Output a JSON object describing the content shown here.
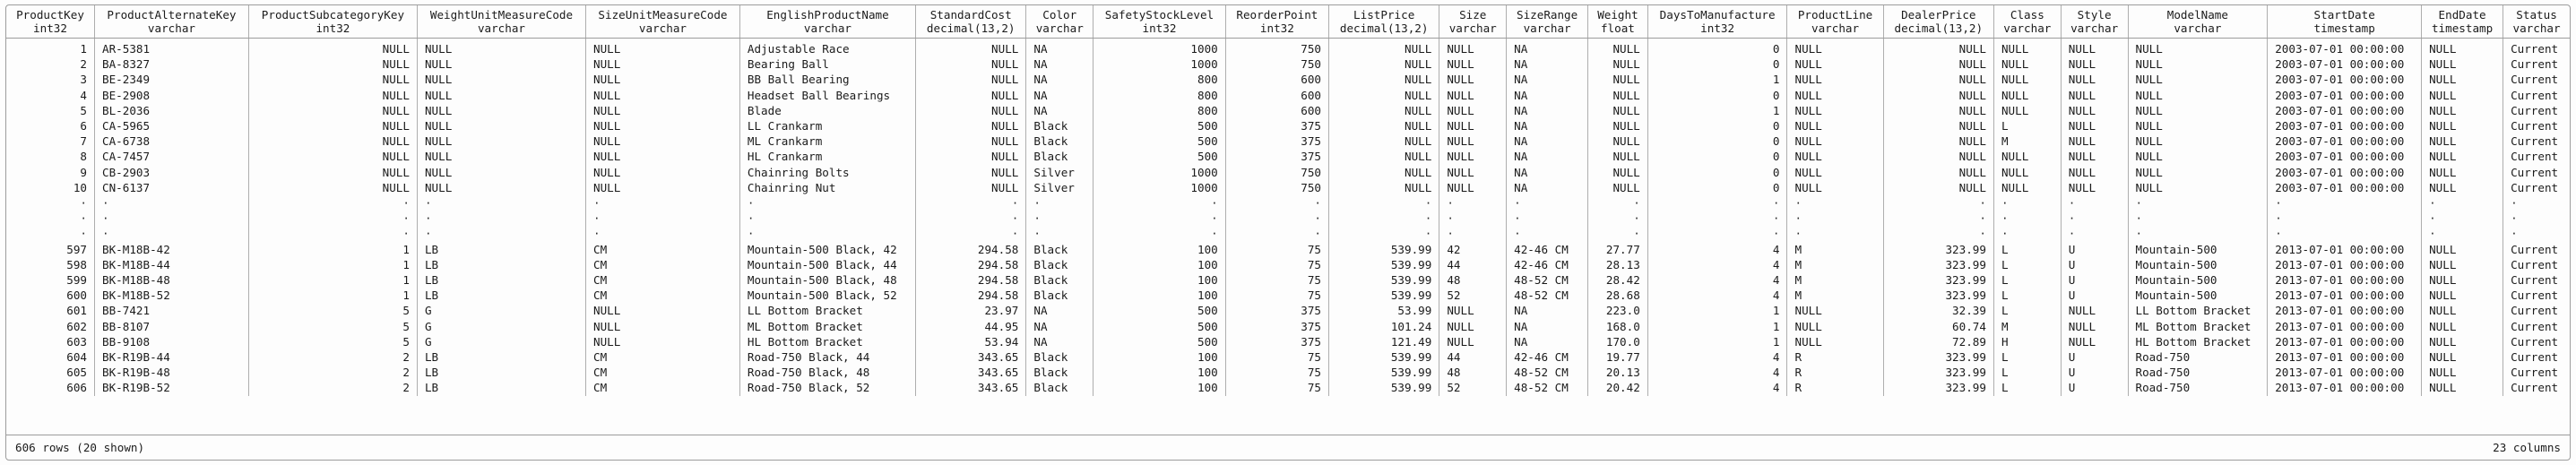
{
  "colors": {
    "background": "#fdfdfd",
    "border": "#9c9c9c",
    "text": "#1b1b1b"
  },
  "table": {
    "ellipsis_symbol": "·",
    "ellipsis_row_count": 3,
    "columns": [
      {
        "name": "ProductKey",
        "type": "int32",
        "align": "right"
      },
      {
        "name": "ProductAlternateKey",
        "type": "varchar",
        "align": "left"
      },
      {
        "name": "ProductSubcategoryKey",
        "type": "int32",
        "align": "right"
      },
      {
        "name": "WeightUnitMeasureCode",
        "type": "varchar",
        "align": "left"
      },
      {
        "name": "SizeUnitMeasureCode",
        "type": "varchar",
        "align": "left"
      },
      {
        "name": "EnglishProductName",
        "type": "varchar",
        "align": "left"
      },
      {
        "name": "StandardCost",
        "type": "decimal(13,2)",
        "align": "right"
      },
      {
        "name": "Color",
        "type": "varchar",
        "align": "left"
      },
      {
        "name": "SafetyStockLevel",
        "type": "int32",
        "align": "right"
      },
      {
        "name": "ReorderPoint",
        "type": "int32",
        "align": "right"
      },
      {
        "name": "ListPrice",
        "type": "decimal(13,2)",
        "align": "right"
      },
      {
        "name": "Size",
        "type": "varchar",
        "align": "left"
      },
      {
        "name": "SizeRange",
        "type": "varchar",
        "align": "left"
      },
      {
        "name": "Weight",
        "type": "float",
        "align": "right"
      },
      {
        "name": "DaysToManufacture",
        "type": "int32",
        "align": "right"
      },
      {
        "name": "ProductLine",
        "type": "varchar",
        "align": "left"
      },
      {
        "name": "DealerPrice",
        "type": "decimal(13,2)",
        "align": "right"
      },
      {
        "name": "Class",
        "type": "varchar",
        "align": "left"
      },
      {
        "name": "Style",
        "type": "varchar",
        "align": "left"
      },
      {
        "name": "ModelName",
        "type": "varchar",
        "align": "left"
      },
      {
        "name": "StartDate",
        "type": "timestamp",
        "align": "left"
      },
      {
        "name": "EndDate",
        "type": "timestamp",
        "align": "left"
      },
      {
        "name": "Status",
        "type": "varchar",
        "align": "left"
      }
    ],
    "rows_top": [
      [
        "1",
        "AR-5381",
        "NULL",
        "NULL",
        "NULL",
        "Adjustable Race",
        "NULL",
        "NA",
        "1000",
        "750",
        "NULL",
        "NULL",
        "NA",
        "NULL",
        "0",
        "NULL",
        "NULL",
        "NULL",
        "NULL",
        "NULL",
        "2003-07-01 00:00:00",
        "NULL",
        "Current"
      ],
      [
        "2",
        "BA-8327",
        "NULL",
        "NULL",
        "NULL",
        "Bearing Ball",
        "NULL",
        "NA",
        "1000",
        "750",
        "NULL",
        "NULL",
        "NA",
        "NULL",
        "0",
        "NULL",
        "NULL",
        "NULL",
        "NULL",
        "NULL",
        "2003-07-01 00:00:00",
        "NULL",
        "Current"
      ],
      [
        "3",
        "BE-2349",
        "NULL",
        "NULL",
        "NULL",
        "BB Ball Bearing",
        "NULL",
        "NA",
        "800",
        "600",
        "NULL",
        "NULL",
        "NA",
        "NULL",
        "1",
        "NULL",
        "NULL",
        "NULL",
        "NULL",
        "NULL",
        "2003-07-01 00:00:00",
        "NULL",
        "Current"
      ],
      [
        "4",
        "BE-2908",
        "NULL",
        "NULL",
        "NULL",
        "Headset Ball Bearings",
        "NULL",
        "NA",
        "800",
        "600",
        "NULL",
        "NULL",
        "NA",
        "NULL",
        "0",
        "NULL",
        "NULL",
        "NULL",
        "NULL",
        "NULL",
        "2003-07-01 00:00:00",
        "NULL",
        "Current"
      ],
      [
        "5",
        "BL-2036",
        "NULL",
        "NULL",
        "NULL",
        "Blade",
        "NULL",
        "NA",
        "800",
        "600",
        "NULL",
        "NULL",
        "NA",
        "NULL",
        "1",
        "NULL",
        "NULL",
        "NULL",
        "NULL",
        "NULL",
        "2003-07-01 00:00:00",
        "NULL",
        "Current"
      ],
      [
        "6",
        "CA-5965",
        "NULL",
        "NULL",
        "NULL",
        "LL Crankarm",
        "NULL",
        "Black",
        "500",
        "375",
        "NULL",
        "NULL",
        "NA",
        "NULL",
        "0",
        "NULL",
        "NULL",
        "L",
        "NULL",
        "NULL",
        "2003-07-01 00:00:00",
        "NULL",
        "Current"
      ],
      [
        "7",
        "CA-6738",
        "NULL",
        "NULL",
        "NULL",
        "ML Crankarm",
        "NULL",
        "Black",
        "500",
        "375",
        "NULL",
        "NULL",
        "NA",
        "NULL",
        "0",
        "NULL",
        "NULL",
        "M",
        "NULL",
        "NULL",
        "2003-07-01 00:00:00",
        "NULL",
        "Current"
      ],
      [
        "8",
        "CA-7457",
        "NULL",
        "NULL",
        "NULL",
        "HL Crankarm",
        "NULL",
        "Black",
        "500",
        "375",
        "NULL",
        "NULL",
        "NA",
        "NULL",
        "0",
        "NULL",
        "NULL",
        "NULL",
        "NULL",
        "NULL",
        "2003-07-01 00:00:00",
        "NULL",
        "Current"
      ],
      [
        "9",
        "CB-2903",
        "NULL",
        "NULL",
        "NULL",
        "Chainring Bolts",
        "NULL",
        "Silver",
        "1000",
        "750",
        "NULL",
        "NULL",
        "NA",
        "NULL",
        "0",
        "NULL",
        "NULL",
        "NULL",
        "NULL",
        "NULL",
        "2003-07-01 00:00:00",
        "NULL",
        "Current"
      ],
      [
        "10",
        "CN-6137",
        "NULL",
        "NULL",
        "NULL",
        "Chainring Nut",
        "NULL",
        "Silver",
        "1000",
        "750",
        "NULL",
        "NULL",
        "NA",
        "NULL",
        "0",
        "NULL",
        "NULL",
        "NULL",
        "NULL",
        "NULL",
        "2003-07-01 00:00:00",
        "NULL",
        "Current"
      ]
    ],
    "rows_bottom": [
      [
        "597",
        "BK-M18B-42",
        "1",
        "LB",
        "CM",
        "Mountain-500 Black, 42",
        "294.58",
        "Black",
        "100",
        "75",
        "539.99",
        "42",
        "42-46 CM",
        "27.77",
        "4",
        "M",
        "323.99",
        "L",
        "U",
        "Mountain-500",
        "2013-07-01 00:00:00",
        "NULL",
        "Current"
      ],
      [
        "598",
        "BK-M18B-44",
        "1",
        "LB",
        "CM",
        "Mountain-500 Black, 44",
        "294.58",
        "Black",
        "100",
        "75",
        "539.99",
        "44",
        "42-46 CM",
        "28.13",
        "4",
        "M",
        "323.99",
        "L",
        "U",
        "Mountain-500",
        "2013-07-01 00:00:00",
        "NULL",
        "Current"
      ],
      [
        "599",
        "BK-M18B-48",
        "1",
        "LB",
        "CM",
        "Mountain-500 Black, 48",
        "294.58",
        "Black",
        "100",
        "75",
        "539.99",
        "48",
        "48-52 CM",
        "28.42",
        "4",
        "M",
        "323.99",
        "L",
        "U",
        "Mountain-500",
        "2013-07-01 00:00:00",
        "NULL",
        "Current"
      ],
      [
        "600",
        "BK-M18B-52",
        "1",
        "LB",
        "CM",
        "Mountain-500 Black, 52",
        "294.58",
        "Black",
        "100",
        "75",
        "539.99",
        "52",
        "48-52 CM",
        "28.68",
        "4",
        "M",
        "323.99",
        "L",
        "U",
        "Mountain-500",
        "2013-07-01 00:00:00",
        "NULL",
        "Current"
      ],
      [
        "601",
        "BB-7421",
        "5",
        "G",
        "NULL",
        "LL Bottom Bracket",
        "23.97",
        "NA",
        "500",
        "375",
        "53.99",
        "NULL",
        "NA",
        "223.0",
        "1",
        "NULL",
        "32.39",
        "L",
        "NULL",
        "LL Bottom Bracket",
        "2013-07-01 00:00:00",
        "NULL",
        "Current"
      ],
      [
        "602",
        "BB-8107",
        "5",
        "G",
        "NULL",
        "ML Bottom Bracket",
        "44.95",
        "NA",
        "500",
        "375",
        "101.24",
        "NULL",
        "NA",
        "168.0",
        "1",
        "NULL",
        "60.74",
        "M",
        "NULL",
        "ML Bottom Bracket",
        "2013-07-01 00:00:00",
        "NULL",
        "Current"
      ],
      [
        "603",
        "BB-9108",
        "5",
        "G",
        "NULL",
        "HL Bottom Bracket",
        "53.94",
        "NA",
        "500",
        "375",
        "121.49",
        "NULL",
        "NA",
        "170.0",
        "1",
        "NULL",
        "72.89",
        "H",
        "NULL",
        "HL Bottom Bracket",
        "2013-07-01 00:00:00",
        "NULL",
        "Current"
      ],
      [
        "604",
        "BK-R19B-44",
        "2",
        "LB",
        "CM",
        "Road-750 Black, 44",
        "343.65",
        "Black",
        "100",
        "75",
        "539.99",
        "44",
        "42-46 CM",
        "19.77",
        "4",
        "R",
        "323.99",
        "L",
        "U",
        "Road-750",
        "2013-07-01 00:00:00",
        "NULL",
        "Current"
      ],
      [
        "605",
        "BK-R19B-48",
        "2",
        "LB",
        "CM",
        "Road-750 Black, 48",
        "343.65",
        "Black",
        "100",
        "75",
        "539.99",
        "48",
        "48-52 CM",
        "20.13",
        "4",
        "R",
        "323.99",
        "L",
        "U",
        "Road-750",
        "2013-07-01 00:00:00",
        "NULL",
        "Current"
      ],
      [
        "606",
        "BK-R19B-52",
        "2",
        "LB",
        "CM",
        "Road-750 Black, 52",
        "343.65",
        "Black",
        "100",
        "75",
        "539.99",
        "52",
        "48-52 CM",
        "20.42",
        "4",
        "R",
        "323.99",
        "L",
        "U",
        "Road-750",
        "2013-07-01 00:00:00",
        "NULL",
        "Current"
      ]
    ],
    "footer": {
      "left": "606 rows (20 shown)",
      "right": "23 columns"
    }
  }
}
